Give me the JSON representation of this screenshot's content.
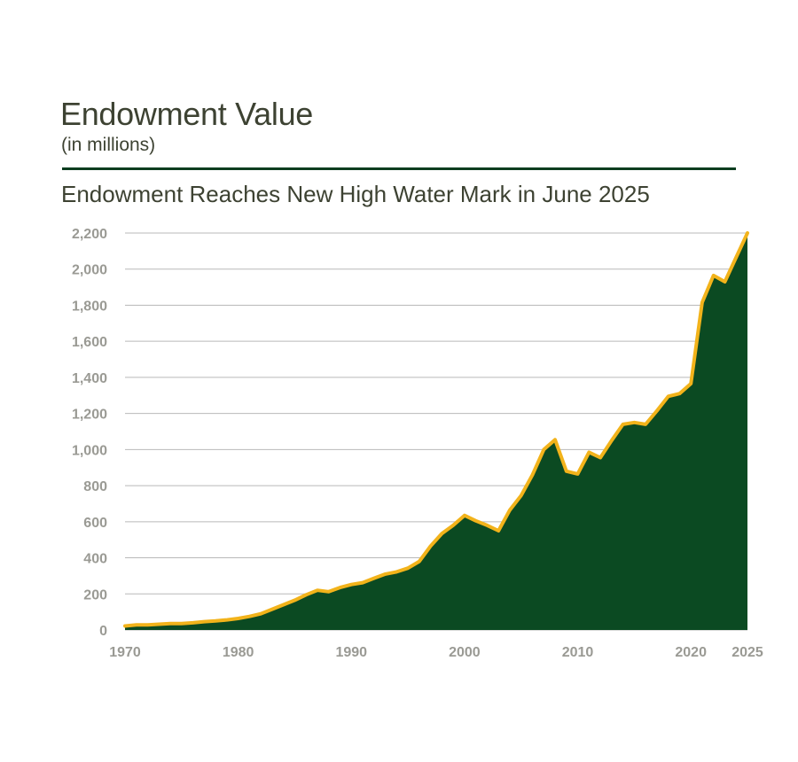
{
  "header": {
    "title": "Endowment Value",
    "subtitle": "(in millions)",
    "headline": "Endowment Reaches New High Water Mark in June 2025"
  },
  "colors": {
    "area": "#0b4a22",
    "line": "#f2b31b",
    "grid": "#b9b9b9",
    "text": "#3d4232",
    "tick": "#9a9a94"
  },
  "chart_data": {
    "type": "area",
    "title": "Endowment Reaches New High Water Mark in June 2025",
    "xlabel": "",
    "ylabel": "",
    "xlim": [
      1970,
      2025
    ],
    "ylim": [
      0,
      2200
    ],
    "grid": true,
    "y_ticks": [
      0,
      200,
      400,
      600,
      800,
      1000,
      1200,
      1400,
      1600,
      1800,
      2000,
      2200
    ],
    "y_tick_labels": [
      "0",
      "200",
      "400",
      "600",
      "800",
      "1,000",
      "1,200",
      "1,400",
      "1,600",
      "1,800",
      "2,000",
      "2,200"
    ],
    "x_tick_labels": [
      "1970",
      "1980",
      "1990",
      "2000",
      "2010",
      "2020",
      "2025"
    ],
    "x_ticks": [
      1970,
      1980,
      1990,
      2000,
      2010,
      2020,
      2025
    ],
    "x": [
      1970,
      1971,
      1972,
      1973,
      1974,
      1975,
      1976,
      1977,
      1978,
      1979,
      1980,
      1981,
      1982,
      1983,
      1984,
      1985,
      1986,
      1987,
      1988,
      1989,
      1990,
      1991,
      1992,
      1993,
      1994,
      1995,
      1996,
      1997,
      1998,
      1999,
      2000,
      2001,
      2002,
      2003,
      2004,
      2005,
      2006,
      2007,
      2008,
      2009,
      2010,
      2011,
      2012,
      2013,
      2014,
      2015,
      2016,
      2017,
      2018,
      2019,
      2020,
      2021,
      2022,
      2023,
      2024,
      2025
    ],
    "series": [
      {
        "values": [
          22,
          28,
          28,
          32,
          36,
          36,
          40,
          46,
          50,
          56,
          64,
          75,
          90,
          115,
          140,
          165,
          195,
          220,
          212,
          235,
          252,
          262,
          287,
          310,
          322,
          343,
          380,
          465,
          535,
          580,
          635,
          605,
          580,
          550,
          665,
          745,
          860,
          1000,
          1055,
          880,
          865,
          985,
          955,
          1050,
          1140,
          1150,
          1140,
          1215,
          1295,
          1310,
          1365,
          1815,
          1965,
          1930,
          2065,
          2200
        ]
      }
    ]
  }
}
